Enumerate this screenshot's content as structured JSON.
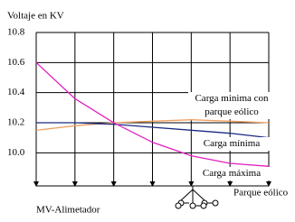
{
  "chart_data": {
    "type": "line",
    "ylabel": "Voltaje en KV",
    "xlabel": "MV-Alimetador",
    "end_label": "Parque eólico",
    "categories": [
      null,
      null,
      null,
      null,
      null,
      null,
      null
    ],
    "series": [
      {
        "name": "Carga minima con parque eólico",
        "color": "#f0a060",
        "values": [
          10.15,
          10.18,
          10.2,
          10.21,
          10.22,
          10.21,
          10.2
        ]
      },
      {
        "name": "Carga mínima",
        "color": "#1a2a80",
        "values": [
          10.2,
          10.2,
          10.19,
          10.17,
          10.15,
          10.13,
          10.1
        ]
      },
      {
        "name": "Carga máxima",
        "color": "#e020c0",
        "values": [
          10.6,
          10.36,
          10.2,
          10.07,
          9.98,
          9.93,
          9.91
        ]
      }
    ],
    "ylim": [
      9.78,
      10.8
    ],
    "yticks": [
      10.8,
      10.6,
      10.4,
      {
        "value": 10,
        "label": "10.0"
      },
      10.2
    ],
    "grid": true
  }
}
